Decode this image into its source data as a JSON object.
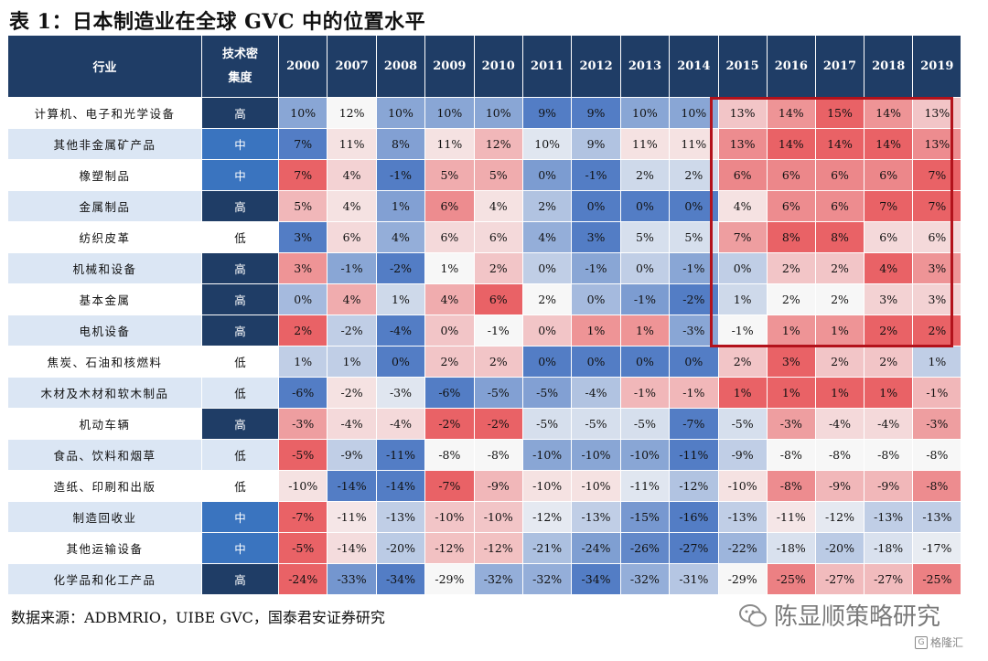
{
  "title": "表 1：日本制造业在全球 GVC 中的位置水平",
  "footer": "数据来源：ADBMRIO，UIBE GVC，国泰君安证券研究",
  "watermark": "陈显顺策略研究",
  "badge": "格隆汇",
  "chart_data": {
    "type": "table",
    "header": {
      "industry": "行业",
      "tech_line1": "技术密",
      "tech_line2": "集度"
    },
    "years": [
      "2000",
      "2007",
      "2008",
      "2009",
      "2010",
      "2011",
      "2012",
      "2013",
      "2014",
      "2015",
      "2016",
      "2017",
      "2018",
      "2019"
    ],
    "colors": {
      "tech_high": "#1f3d66",
      "tech_mid": "#3a74bf",
      "tech_low": "#ffffff",
      "positive": "#e85a5e",
      "neutral": "#f7f7f7",
      "negative": "#4a77c2",
      "highlight_border": "#b3121b"
    },
    "rows": [
      {
        "industry": "计算机、电子和光学设备",
        "tech": "高",
        "values": [
          "10%",
          "12%",
          "10%",
          "10%",
          "10%",
          "9%",
          "9%",
          "10%",
          "10%",
          "13%",
          "14%",
          "15%",
          "14%",
          "13%"
        ]
      },
      {
        "industry": "其他非金属矿产品",
        "tech": "中",
        "values": [
          "7%",
          "11%",
          "8%",
          "11%",
          "12%",
          "10%",
          "9%",
          "11%",
          "11%",
          "13%",
          "14%",
          "14%",
          "14%",
          "13%"
        ]
      },
      {
        "industry": "橡塑制品",
        "tech": "中",
        "values": [
          "7%",
          "4%",
          "-1%",
          "5%",
          "5%",
          "0%",
          "-1%",
          "2%",
          "2%",
          "6%",
          "6%",
          "6%",
          "6%",
          "7%"
        ]
      },
      {
        "industry": "金属制品",
        "tech": "高",
        "values": [
          "5%",
          "4%",
          "1%",
          "6%",
          "4%",
          "2%",
          "0%",
          "0%",
          "0%",
          "4%",
          "6%",
          "6%",
          "7%",
          "7%"
        ]
      },
      {
        "industry": "纺织皮革",
        "tech": "低",
        "values": [
          "3%",
          "6%",
          "4%",
          "6%",
          "6%",
          "4%",
          "3%",
          "5%",
          "5%",
          "7%",
          "8%",
          "8%",
          "6%",
          "6%"
        ]
      },
      {
        "industry": "机械和设备",
        "tech": "高",
        "values": [
          "3%",
          "-1%",
          "-2%",
          "1%",
          "2%",
          "0%",
          "-1%",
          "0%",
          "-1%",
          "0%",
          "2%",
          "2%",
          "4%",
          "3%"
        ]
      },
      {
        "industry": "基本金属",
        "tech": "高",
        "values": [
          "0%",
          "4%",
          "1%",
          "4%",
          "6%",
          "2%",
          "0%",
          "-1%",
          "-2%",
          "1%",
          "2%",
          "2%",
          "3%",
          "3%"
        ]
      },
      {
        "industry": "电机设备",
        "tech": "高",
        "values": [
          "2%",
          "-2%",
          "-4%",
          "0%",
          "-1%",
          "0%",
          "1%",
          "1%",
          "-3%",
          "-1%",
          "1%",
          "1%",
          "2%",
          "2%"
        ]
      },
      {
        "industry": "焦炭、石油和核燃料",
        "tech": "低",
        "values": [
          "1%",
          "1%",
          "0%",
          "2%",
          "2%",
          "0%",
          "0%",
          "0%",
          "0%",
          "2%",
          "3%",
          "2%",
          "2%",
          "1%"
        ]
      },
      {
        "industry": "木材及木材和软木制品",
        "tech": "低",
        "values": [
          "-6%",
          "-2%",
          "-3%",
          "-6%",
          "-5%",
          "-5%",
          "-4%",
          "-1%",
          "-1%",
          "1%",
          "1%",
          "1%",
          "1%",
          "-1%"
        ]
      },
      {
        "industry": "机动车辆",
        "tech": "高",
        "values": [
          "-3%",
          "-4%",
          "-4%",
          "-2%",
          "-2%",
          "-5%",
          "-5%",
          "-5%",
          "-7%",
          "-5%",
          "-3%",
          "-4%",
          "-4%",
          "-3%"
        ]
      },
      {
        "industry": "食品、饮料和烟草",
        "tech": "低",
        "values": [
          "-5%",
          "-9%",
          "-11%",
          "-8%",
          "-8%",
          "-10%",
          "-10%",
          "-10%",
          "-11%",
          "-9%",
          "-8%",
          "-8%",
          "-8%",
          "-8%"
        ]
      },
      {
        "industry": "造纸、印刷和出版",
        "tech": "低",
        "values": [
          "-10%",
          "-14%",
          "-14%",
          "-7%",
          "-9%",
          "-10%",
          "-10%",
          "-11%",
          "-12%",
          "-10%",
          "-8%",
          "-9%",
          "-9%",
          "-8%"
        ]
      },
      {
        "industry": "制造回收业",
        "tech": "中",
        "values": [
          "-7%",
          "-11%",
          "-13%",
          "-10%",
          "-10%",
          "-12%",
          "-13%",
          "-15%",
          "-16%",
          "-13%",
          "-11%",
          "-12%",
          "-13%",
          "-13%"
        ]
      },
      {
        "industry": "其他运输设备",
        "tech": "中",
        "values": [
          "-5%",
          "-14%",
          "-20%",
          "-12%",
          "-12%",
          "-21%",
          "-24%",
          "-26%",
          "-27%",
          "-22%",
          "-18%",
          "-20%",
          "-18%",
          "-17%"
        ]
      },
      {
        "industry": "化学品和化工产品",
        "tech": "高",
        "values": [
          "-24%",
          "-33%",
          "-34%",
          "-29%",
          "-32%",
          "-32%",
          "-34%",
          "-32%",
          "-31%",
          "-29%",
          "-25%",
          "-27%",
          "-27%",
          "-25%"
        ]
      }
    ],
    "highlight": {
      "rows": [
        0,
        7
      ],
      "years": [
        "2015",
        "2019"
      ]
    }
  }
}
